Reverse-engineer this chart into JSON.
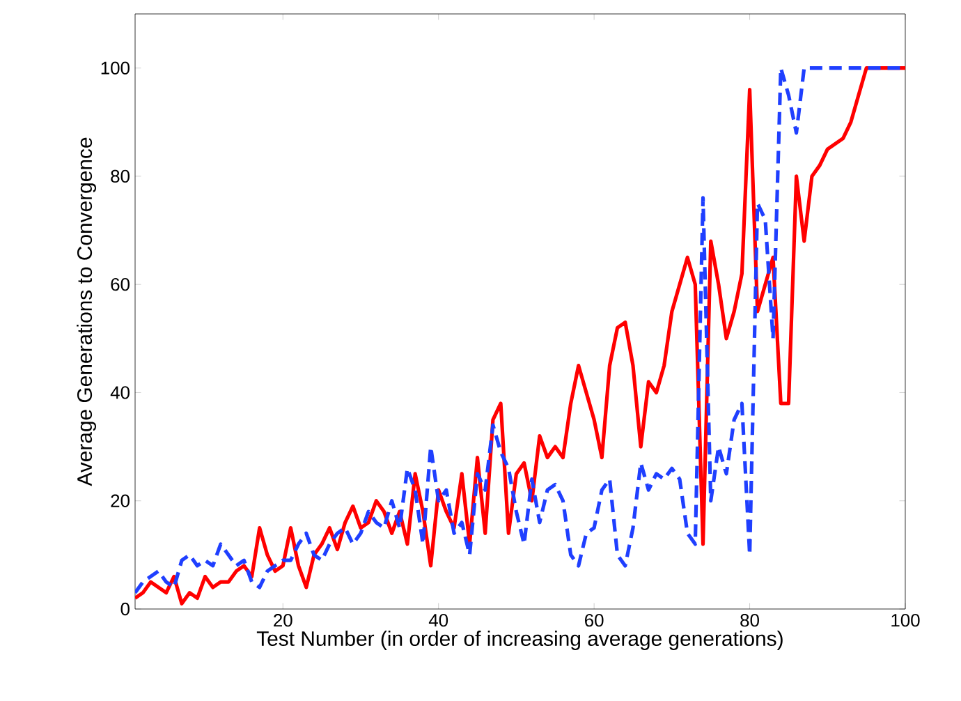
{
  "chart_data": {
    "type": "line",
    "xlabel": "Test Number (in order of increasing average generations)",
    "ylabel": "Average Generations to Convergence",
    "xlim": [
      1,
      100
    ],
    "ylim": [
      0,
      110
    ],
    "xticks": [
      20,
      40,
      60,
      80,
      100
    ],
    "yticks": [
      0,
      20,
      40,
      60,
      80,
      100
    ],
    "grid": false,
    "marker": "none",
    "series": [
      {
        "color": "#ff0000",
        "line_style": "solid",
        "x": [
          1,
          2,
          3,
          4,
          5,
          6,
          7,
          8,
          9,
          10,
          11,
          12,
          13,
          14,
          15,
          16,
          17,
          18,
          19,
          20,
          21,
          22,
          23,
          24,
          25,
          26,
          27,
          28,
          29,
          30,
          31,
          32,
          33,
          34,
          35,
          36,
          37,
          38,
          39,
          40,
          41,
          42,
          43,
          44,
          45,
          46,
          47,
          48,
          49,
          50,
          51,
          52,
          53,
          54,
          55,
          56,
          57,
          58,
          59,
          60,
          61,
          62,
          63,
          64,
          65,
          66,
          67,
          68,
          69,
          70,
          71,
          72,
          73,
          74,
          75,
          76,
          77,
          78,
          79,
          80,
          81,
          82,
          83,
          84,
          85,
          86,
          87,
          88,
          89,
          90,
          91,
          92,
          93,
          94,
          95,
          100
        ],
        "values": [
          2,
          3,
          5,
          4,
          3,
          6,
          1,
          3,
          2,
          6,
          4,
          5,
          5,
          7,
          8,
          6,
          15,
          10,
          7,
          8,
          15,
          8,
          4,
          10,
          12,
          15,
          11,
          16,
          19,
          15,
          16,
          20,
          18,
          14,
          18,
          12,
          25,
          18,
          8,
          22,
          18,
          15,
          25,
          12,
          28,
          14,
          35,
          38,
          14,
          25,
          27,
          20,
          32,
          28,
          30,
          28,
          38,
          45,
          40,
          35,
          28,
          45,
          52,
          53,
          45,
          30,
          42,
          40,
          45,
          55,
          60,
          65,
          60,
          12,
          68,
          60,
          50,
          55,
          62,
          96,
          55,
          60,
          65,
          38,
          38,
          80,
          68,
          80,
          82,
          85,
          86,
          87,
          90,
          95,
          100,
          100
        ]
      },
      {
        "color": "#1f3fff",
        "line_style": "dashed",
        "x": [
          1,
          2,
          3,
          4,
          5,
          6,
          7,
          8,
          9,
          10,
          11,
          12,
          13,
          14,
          15,
          16,
          17,
          18,
          19,
          20,
          21,
          22,
          23,
          24,
          25,
          26,
          27,
          28,
          29,
          30,
          31,
          32,
          33,
          34,
          35,
          36,
          37,
          38,
          39,
          40,
          41,
          42,
          43,
          44,
          45,
          46,
          47,
          48,
          49,
          50,
          51,
          52,
          53,
          54,
          55,
          56,
          57,
          58,
          59,
          60,
          61,
          62,
          63,
          64,
          65,
          66,
          67,
          68,
          69,
          70,
          71,
          72,
          73,
          74,
          75,
          76,
          77,
          78,
          79,
          80,
          81,
          82,
          83,
          84,
          85,
          86,
          87,
          100
        ],
        "values": [
          3,
          5,
          6,
          7,
          5,
          4,
          9,
          10,
          8,
          9,
          8,
          12,
          10,
          8,
          9,
          5,
          4,
          7,
          8,
          9,
          9,
          12,
          14,
          10,
          9,
          12,
          14,
          15,
          12,
          14,
          18,
          16,
          15,
          20,
          15,
          26,
          22,
          12,
          30,
          20,
          22,
          14,
          16,
          10,
          25,
          22,
          34,
          29,
          26,
          18,
          12,
          24,
          16,
          22,
          23,
          20,
          10,
          8,
          14,
          15,
          22,
          24,
          10,
          8,
          15,
          27,
          22,
          25,
          24,
          26,
          24,
          14,
          12,
          76,
          20,
          30,
          25,
          35,
          38,
          10,
          75,
          72,
          50,
          100,
          95,
          88,
          100,
          100
        ]
      }
    ]
  }
}
